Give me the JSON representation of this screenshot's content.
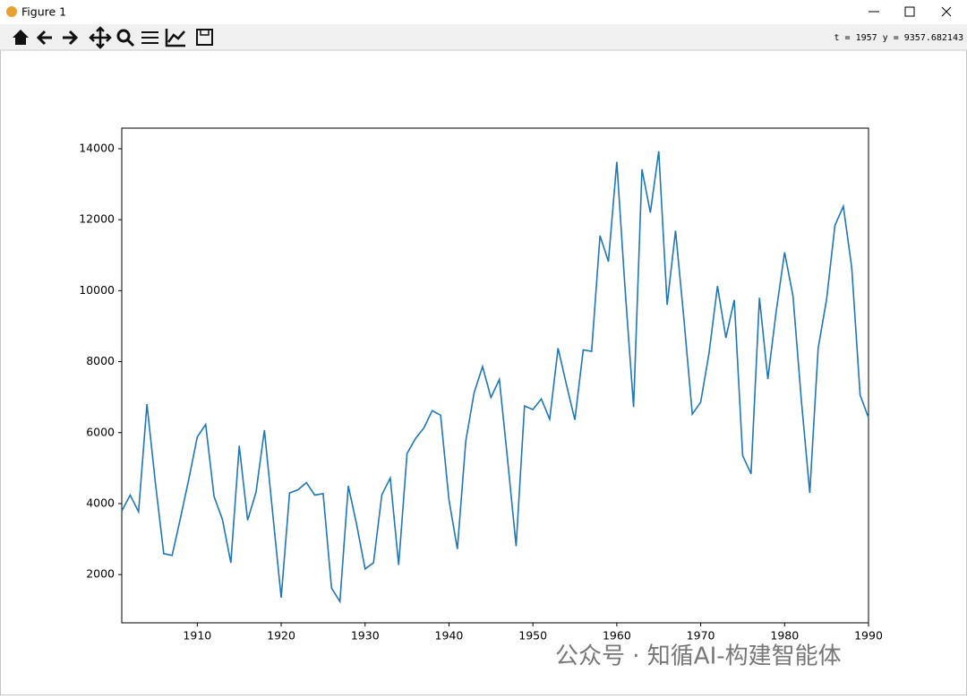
{
  "window": {
    "title": "Figure 1",
    "status": "t = 1957  y = 9357.682143"
  },
  "watermark": "公众号 · 知循AI-构建智能体",
  "chart_data": {
    "type": "line",
    "color": "#1f77b4",
    "x": [
      1901,
      1902,
      1903,
      1904,
      1905,
      1906,
      1907,
      1908,
      1909,
      1910,
      1911,
      1912,
      1913,
      1914,
      1915,
      1916,
      1917,
      1918,
      1919,
      1920,
      1921,
      1922,
      1923,
      1924,
      1925,
      1926,
      1927,
      1928,
      1929,
      1930,
      1931,
      1932,
      1933,
      1934,
      1935,
      1936,
      1937,
      1938,
      1939,
      1940,
      1941,
      1942,
      1943,
      1944,
      1945,
      1946,
      1947,
      1948,
      1949,
      1950,
      1951,
      1952,
      1953,
      1954,
      1955,
      1956,
      1957,
      1958,
      1959,
      1960,
      1961,
      1962,
      1963,
      1964,
      1965,
      1966,
      1967,
      1968,
      1969,
      1970,
      1971,
      1972,
      1973,
      1974,
      1975,
      1976,
      1977,
      1978,
      1979,
      1980,
      1981,
      1982,
      1983,
      1984,
      1985,
      1986,
      1987,
      1988,
      1989,
      1990
    ],
    "values": [
      3790,
      4240,
      3770,
      6800,
      4600,
      2590,
      2540,
      3600,
      4700,
      5880,
      6230,
      4200,
      3550,
      2330,
      5630,
      3530,
      4320,
      6070,
      3700,
      1350,
      4300,
      4390,
      4590,
      4240,
      4280,
      1620,
      1240,
      4500,
      3400,
      2160,
      2330,
      4250,
      4720,
      2270,
      5410,
      5830,
      6130,
      6620,
      6490,
      4100,
      2720,
      5760,
      7130,
      7860,
      6990,
      7500,
      5200,
      2800,
      6750,
      6650,
      6950,
      6380,
      8380,
      7350,
      6360,
      8330,
      8290,
      11550,
      10820,
      13630,
      10000,
      6720,
      13420,
      12200,
      13930,
      9600,
      11690,
      9200,
      6520,
      6860,
      8250,
      10130,
      8670,
      9740,
      5350,
      4840,
      9800,
      7510,
      9420,
      11080,
      9850,
      6900,
      4300,
      8380,
      9750,
      11840,
      12380,
      10650,
      7060,
      6420
    ],
    "xlim": [
      1901,
      1990
    ],
    "xticks": [
      1910,
      1920,
      1930,
      1940,
      1950,
      1960,
      1970,
      1980,
      1990
    ],
    "ylim": [
      640,
      14580
    ],
    "yticks": [
      2000,
      4000,
      6000,
      8000,
      10000,
      12000,
      14000
    ]
  }
}
